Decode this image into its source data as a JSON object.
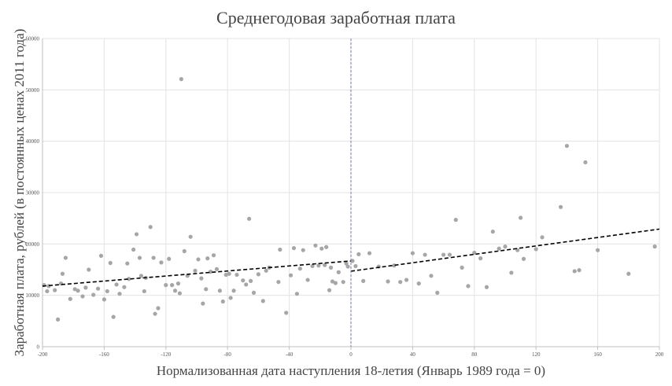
{
  "chart_data": {
    "type": "scatter",
    "title": "Среднегодовая заработная плата",
    "xlabel": "Нормализованная дата наступления 18-летия (Январь 1989 года = 0)",
    "ylabel": "Заработная плата, рублей (в постоянных ценах 2011 года)",
    "xlim": [
      -200,
      200
    ],
    "ylim": [
      0,
      60000
    ],
    "x_ticks": [
      -200,
      -160,
      -120,
      -80,
      -40,
      0,
      40,
      80,
      120,
      160,
      200
    ],
    "y_ticks": [
      0,
      10000,
      20000,
      30000,
      40000,
      50000,
      60000
    ],
    "x_tick_labels": [
      "-200",
      "-160",
      "-120",
      "-80",
      "-40",
      "0",
      "40",
      "80",
      "120",
      "160",
      "200"
    ],
    "y_tick_labels": [
      "0",
      "10000",
      "20000",
      "30000",
      "40000",
      "50000",
      "60000"
    ],
    "grid": true,
    "cutoff_x": 0,
    "colors": {
      "points": "#a6a6a6",
      "trend": "#000000",
      "cutoff": "#6f7f9f",
      "grid": "#e3e3e3"
    },
    "points": [
      [
        -199,
        12000
      ],
      [
        -197,
        10800
      ],
      [
        -196,
        11800
      ],
      [
        -192,
        11000
      ],
      [
        -190,
        5300
      ],
      [
        -188,
        12300
      ],
      [
        -187,
        14200
      ],
      [
        -185,
        17300
      ],
      [
        -182,
        9300
      ],
      [
        -179,
        11200
      ],
      [
        -177,
        10900
      ],
      [
        -174,
        9800
      ],
      [
        -172,
        11500
      ],
      [
        -170,
        15000
      ],
      [
        -167,
        10100
      ],
      [
        -164,
        11300
      ],
      [
        -162,
        17700
      ],
      [
        -160,
        9200
      ],
      [
        -158,
        10800
      ],
      [
        -156,
        16300
      ],
      [
        -154,
        5800
      ],
      [
        -152,
        12100
      ],
      [
        -150,
        10300
      ],
      [
        -147,
        11600
      ],
      [
        -145,
        16200
      ],
      [
        -144,
        13200
      ],
      [
        -141,
        18900
      ],
      [
        -139,
        21900
      ],
      [
        -137,
        17300
      ],
      [
        -136,
        13800
      ],
      [
        -134,
        10800
      ],
      [
        -133,
        13400
      ],
      [
        -130,
        23300
      ],
      [
        -128,
        17300
      ],
      [
        -127,
        6400
      ],
      [
        -125,
        7500
      ],
      [
        -123,
        16400
      ],
      [
        -120,
        12000
      ],
      [
        -118,
        17100
      ],
      [
        -116,
        12000
      ],
      [
        -114,
        10900
      ],
      [
        -112,
        12300
      ],
      [
        -111,
        10400
      ],
      [
        -110,
        52100
      ],
      [
        -108,
        18600
      ],
      [
        -106,
        13800
      ],
      [
        -104,
        21400
      ],
      [
        -101,
        14800
      ],
      [
        -99,
        17000
      ],
      [
        -97,
        13300
      ],
      [
        -96,
        8400
      ],
      [
        -94,
        11200
      ],
      [
        -93,
        17200
      ],
      [
        -91,
        14600
      ],
      [
        -89,
        17800
      ],
      [
        -87,
        15100
      ],
      [
        -85,
        10900
      ],
      [
        -83,
        8800
      ],
      [
        -81,
        14000
      ],
      [
        -79,
        14200
      ],
      [
        -78,
        9500
      ],
      [
        -76,
        10900
      ],
      [
        -74,
        14000
      ],
      [
        -70,
        12900
      ],
      [
        -68,
        12100
      ],
      [
        -66,
        24900
      ],
      [
        -65,
        12800
      ],
      [
        -63,
        10500
      ],
      [
        -60,
        14100
      ],
      [
        -57,
        8900
      ],
      [
        -55,
        14800
      ],
      [
        -53,
        15400
      ],
      [
        -47,
        12600
      ],
      [
        -46,
        18900
      ],
      [
        -42,
        6600
      ],
      [
        -39,
        13900
      ],
      [
        -37,
        19200
      ],
      [
        -35,
        10300
      ],
      [
        -33,
        15200
      ],
      [
        -31,
        18800
      ],
      [
        -28,
        13000
      ],
      [
        -25,
        15700
      ],
      [
        -23,
        19700
      ],
      [
        -21,
        15800
      ],
      [
        -19,
        19100
      ],
      [
        -17,
        15900
      ],
      [
        -16,
        19400
      ],
      [
        -14,
        11000
      ],
      [
        -13,
        15400
      ],
      [
        -12,
        12700
      ],
      [
        -10,
        12400
      ],
      [
        -8,
        14500
      ],
      [
        -5,
        12600
      ],
      [
        -3,
        16200
      ],
      [
        -2,
        15600
      ],
      [
        1,
        16700
      ],
      [
        3,
        15700
      ],
      [
        5,
        18000
      ],
      [
        8,
        12800
      ],
      [
        12,
        18200
      ],
      [
        18,
        15600
      ],
      [
        24,
        12700
      ],
      [
        28,
        15800
      ],
      [
        32,
        12600
      ],
      [
        36,
        13000
      ],
      [
        40,
        18200
      ],
      [
        44,
        12300
      ],
      [
        48,
        17900
      ],
      [
        52,
        13800
      ],
      [
        56,
        10500
      ],
      [
        60,
        17900
      ],
      [
        64,
        17900
      ],
      [
        68,
        24700
      ],
      [
        72,
        15400
      ],
      [
        76,
        11800
      ],
      [
        80,
        18300
      ],
      [
        84,
        17200
      ],
      [
        88,
        11600
      ],
      [
        92,
        22400
      ],
      [
        96,
        19100
      ],
      [
        100,
        19500
      ],
      [
        104,
        14400
      ],
      [
        108,
        18800
      ],
      [
        110,
        25100
      ],
      [
        112,
        17100
      ],
      [
        120,
        19000
      ],
      [
        124,
        21300
      ],
      [
        136,
        27200
      ],
      [
        140,
        39100
      ],
      [
        145,
        14700
      ],
      [
        148,
        14900
      ],
      [
        152,
        35900
      ],
      [
        160,
        18800
      ],
      [
        180,
        14200
      ],
      [
        197,
        19500
      ]
    ],
    "trend_lines": [
      {
        "x": [
          -200,
          0
        ],
        "y": [
          11800,
          16700
        ]
      },
      {
        "x": [
          0,
          200
        ],
        "y": [
          14700,
          22900
        ]
      }
    ]
  }
}
